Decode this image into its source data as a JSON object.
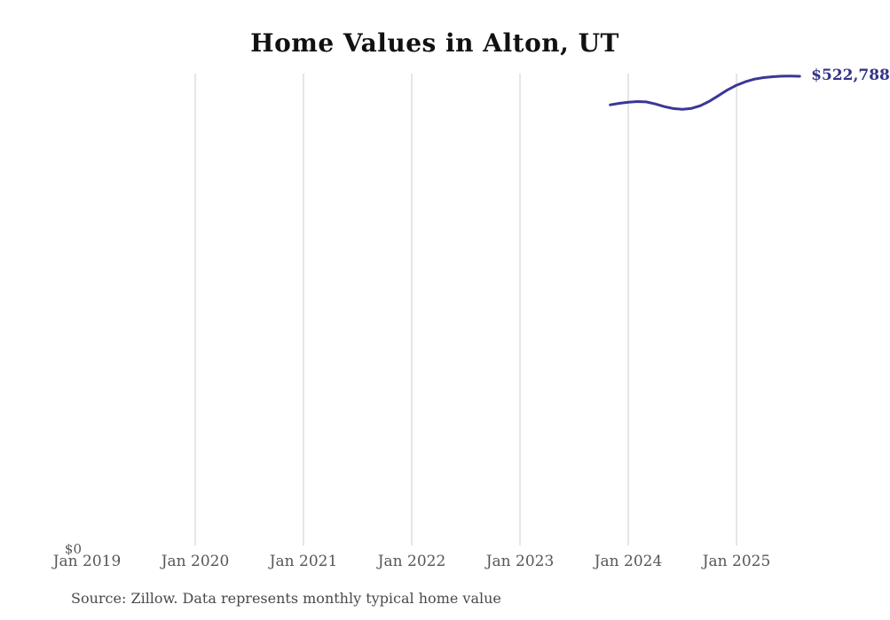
{
  "page": {
    "title": "Home Values in Alton, UT",
    "y_zero_label": "$0",
    "end_value_label": "$522,788",
    "source_note": "Source: Zillow. Data represents monthly typical home value"
  },
  "colors": {
    "background": "#ffffff",
    "line": "#3b3796",
    "end_label": "#333388",
    "grid": "#cccccc",
    "axis_text": "#575757",
    "title_text": "#111111",
    "source_text": "#4a4a4a"
  },
  "chart_data": {
    "type": "line",
    "title": "Home Values in Alton, UT",
    "xlabel": "",
    "ylabel": "",
    "x_tick_labels": [
      "Jan 2019",
      "Jan 2020",
      "Jan 2021",
      "Jan 2022",
      "Jan 2023",
      "Jan 2024",
      "Jan 2025"
    ],
    "x_range_start": "2019-01",
    "ylim": [
      0,
      560000
    ],
    "grid": "vertical-only",
    "legend": "none",
    "annotation_end_label": "$522,788",
    "series": [
      {
        "name": "Monthly typical home value",
        "x": [
          "2023-11",
          "2023-12",
          "2024-01",
          "2024-02",
          "2024-03",
          "2024-04",
          "2024-05",
          "2024-06",
          "2024-07",
          "2024-08",
          "2024-09",
          "2024-10",
          "2024-11",
          "2024-12",
          "2025-01",
          "2025-02",
          "2025-03",
          "2025-04",
          "2025-05",
          "2025-06",
          "2025-07",
          "2025-08"
        ],
        "values": [
          491000,
          492600,
          493800,
          494600,
          494200,
          492000,
          489000,
          486800,
          486000,
          487000,
          490000,
          495000,
          501200,
          507600,
          512800,
          516800,
          519600,
          521300,
          522300,
          522900,
          523100,
          522788
        ]
      }
    ]
  }
}
